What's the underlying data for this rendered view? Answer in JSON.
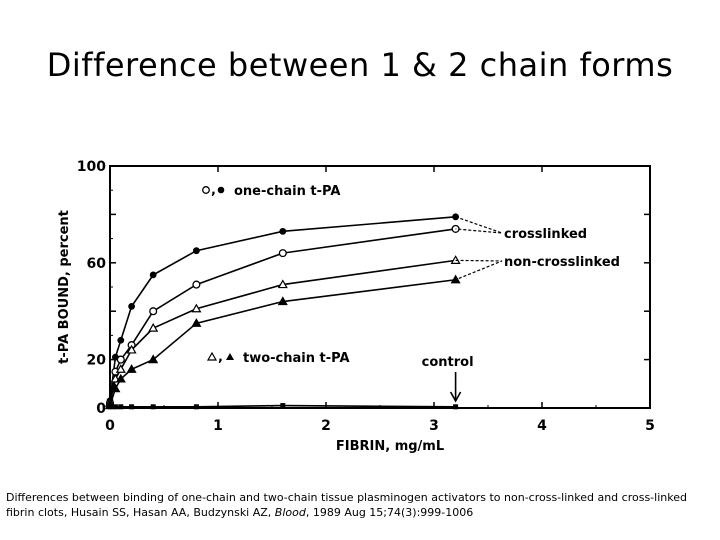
{
  "slide": {
    "title": "Difference between 1 & 2 chain forms"
  },
  "caption": {
    "text_before": "Differences between binding of one-chain and two-chain tissue plasminogen activators to non-cross-linked and cross-linked fibrin clots, Husain SS, Hasan AA, Budzynski AZ, ",
    "journal": "Blood",
    "text_after": ", 1989 Aug 15;74(3):999-1006"
  },
  "chart_data": {
    "type": "line",
    "xlabel": "FIBRIN, mg/mL",
    "ylabel": "t-PA BOUND, percent",
    "xlim": [
      0,
      5
    ],
    "ylim": [
      0,
      100
    ],
    "x_ticks": [
      0,
      1,
      2,
      3,
      4,
      5
    ],
    "y_ticks": [
      0,
      20,
      60,
      100
    ],
    "grid": false,
    "series": [
      {
        "marker": "filled-circle",
        "x": [
          0,
          0.05,
          0.1,
          0.2,
          0.4,
          0.8,
          1.6,
          3.2
        ],
        "y": [
          3,
          21,
          28,
          42,
          55,
          65,
          73,
          79
        ]
      },
      {
        "marker": "open-circle",
        "x": [
          0,
          0.05,
          0.1,
          0.2,
          0.4,
          0.8,
          1.6,
          3.2
        ],
        "y": [
          2,
          15,
          20,
          26,
          40,
          51,
          64,
          74
        ]
      },
      {
        "marker": "open-triangle",
        "x": [
          0,
          0.05,
          0.1,
          0.2,
          0.4,
          0.8,
          1.6,
          3.2
        ],
        "y": [
          2,
          12,
          16,
          24,
          33,
          41,
          51,
          61
        ]
      },
      {
        "marker": "filled-triangle",
        "x": [
          0,
          0.05,
          0.1,
          0.2,
          0.4,
          0.8,
          1.6,
          3.2
        ],
        "y": [
          1,
          8,
          12,
          16,
          20,
          35,
          44,
          53
        ]
      },
      {
        "marker": "filled-square",
        "x": [
          0,
          0.05,
          0.1,
          0.2,
          0.4,
          0.8,
          1.6,
          3.2
        ],
        "y": [
          0.5,
          0.5,
          0.5,
          0.5,
          0.5,
          0.5,
          1,
          0.5
        ]
      }
    ],
    "annotations": [
      {
        "text": "one-chain t-PA",
        "symbols": "○,●"
      },
      {
        "text": "two-chain t-PA",
        "symbols": "△,▲"
      },
      {
        "text": "crosslinked"
      },
      {
        "text": "non-crosslinked"
      },
      {
        "text": "control",
        "arrow_to_x": 3.2
      }
    ]
  }
}
